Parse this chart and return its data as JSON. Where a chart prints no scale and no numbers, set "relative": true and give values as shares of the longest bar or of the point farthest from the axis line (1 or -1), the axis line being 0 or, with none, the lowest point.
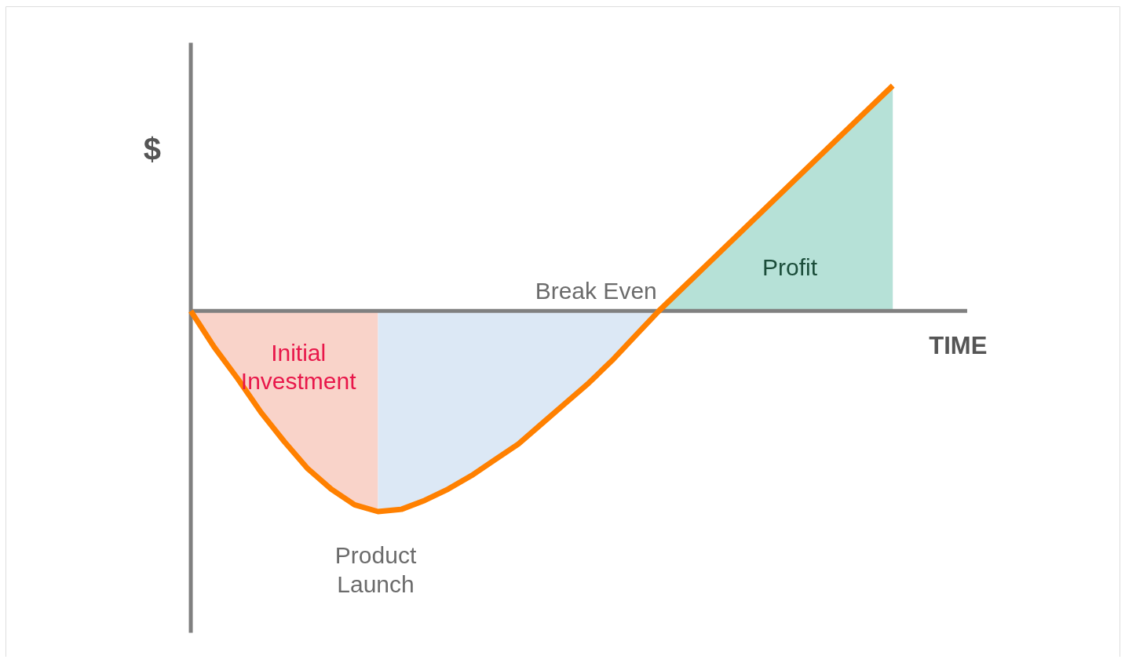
{
  "chart_data": {
    "type": "line",
    "relative": true,
    "xlabel": "TIME",
    "ylabel": "$",
    "categories": [
      null,
      null,
      null,
      null,
      null,
      null,
      null,
      null,
      null,
      null,
      null,
      null,
      null,
      null,
      null,
      null,
      null,
      null,
      null,
      null,
      null,
      null,
      null,
      null,
      null,
      null,
      null,
      null,
      null,
      null,
      null
    ],
    "series": [
      {
        "type": "area",
        "name": "Initial Investment",
        "color": "#f9d3c9",
        "values": [
          0,
          -0.16,
          -0.3,
          -0.45,
          -0.58,
          -0.7,
          -0.79,
          -0.86,
          -0.89,
          null,
          null,
          null,
          null,
          null,
          null,
          null,
          null,
          null,
          null,
          null,
          null,
          null,
          null,
          null,
          null,
          null,
          null,
          null,
          null,
          null,
          null
        ]
      },
      {
        "type": "area",
        "color": "#dce8f5",
        "values": [
          null,
          null,
          null,
          null,
          null,
          null,
          null,
          null,
          -0.89,
          -0.88,
          -0.84,
          -0.79,
          -0.73,
          -0.66,
          -0.59,
          -0.5,
          -0.41,
          -0.32,
          -0.22,
          -0.11,
          0,
          null,
          null,
          null,
          null,
          null,
          null,
          null,
          null,
          null,
          null
        ]
      },
      {
        "type": "area",
        "name": "Profit",
        "color": "#b6e1d7",
        "values": [
          null,
          null,
          null,
          null,
          null,
          null,
          null,
          null,
          null,
          null,
          null,
          null,
          null,
          null,
          null,
          null,
          null,
          null,
          null,
          null,
          0,
          0.1,
          0.2,
          0.3,
          0.4,
          0.5,
          0.6,
          0.7,
          0.8,
          0.9,
          1
        ]
      },
      {
        "color": "#ff8000",
        "values": [
          0,
          -0.16,
          -0.3,
          -0.45,
          -0.58,
          -0.7,
          -0.79,
          -0.86,
          -0.89,
          -0.88,
          -0.84,
          -0.79,
          -0.73,
          -0.66,
          -0.59,
          -0.5,
          -0.41,
          -0.32,
          -0.22,
          -0.11,
          0,
          0.1,
          0.2,
          0.3,
          0.4,
          0.5,
          0.6,
          0.7,
          0.8,
          0.9,
          1
        ]
      }
    ],
    "annotations": [
      "Break Even",
      "Product Launch"
    ]
  }
}
